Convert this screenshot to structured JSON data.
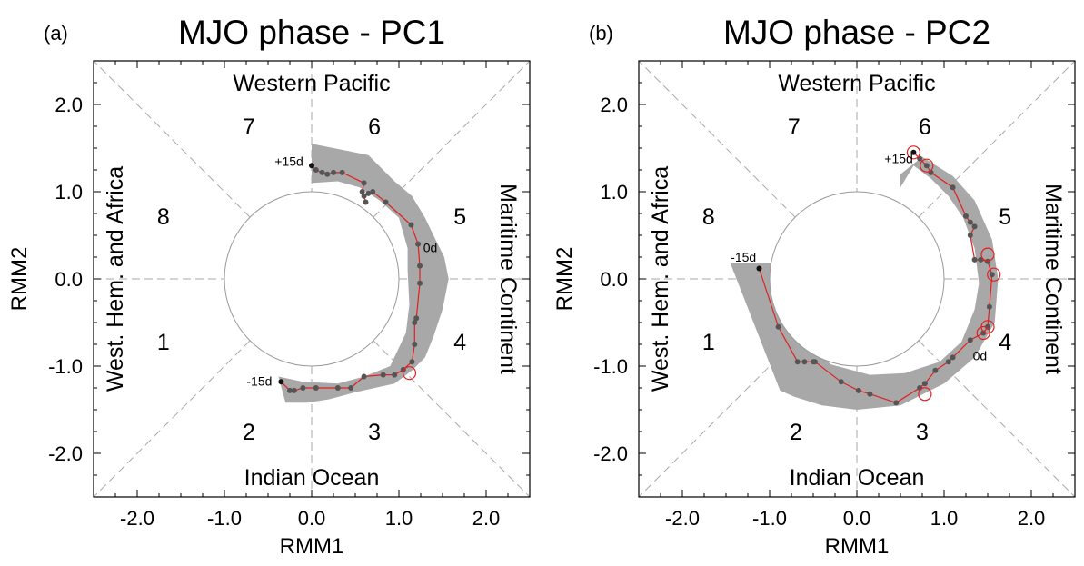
{
  "chart_data": [
    {
      "type": "scatter",
      "panel_label": "(a)",
      "title": "MJO phase - PC1",
      "xlabel": "RMM1",
      "ylabel": "RMM2",
      "xlim": [
        -2.5,
        2.5
      ],
      "ylim": [
        -2.5,
        2.5
      ],
      "xticks": [
        "-2.0",
        "-1.0",
        "0.0",
        "1.0",
        "2.0"
      ],
      "yticks": [
        "-2.0",
        "-1.0",
        "0.0",
        "1.0",
        "2.0"
      ],
      "region_labels": {
        "top": "Western Pacific",
        "bottom": "Indian Ocean",
        "left": "West. Hem. and Africa",
        "right": "Maritime Continent"
      },
      "phase_labels": [
        {
          "text": "1",
          "x": -1.7,
          "y": -0.72
        },
        {
          "text": "2",
          "x": -0.72,
          "y": -1.75
        },
        {
          "text": "3",
          "x": 0.72,
          "y": -1.75
        },
        {
          "text": "4",
          "x": 1.7,
          "y": -0.72
        },
        {
          "text": "5",
          "x": 1.7,
          "y": 0.72
        },
        {
          "text": "6",
          "x": 0.72,
          "y": 1.75
        },
        {
          "text": "7",
          "x": -0.72,
          "y": 1.75
        },
        {
          "text": "8",
          "x": -1.7,
          "y": 0.72
        }
      ],
      "lag_labels": [
        {
          "text": "-15d",
          "x": -0.6,
          "y": -1.17
        },
        {
          "text": "0d",
          "x": 1.36,
          "y": 0.36
        },
        {
          "text": "+15d",
          "x": -0.26,
          "y": 1.35
        }
      ],
      "band": [
        [
          0.0,
          1.55
        ],
        [
          0.35,
          1.48
        ],
        [
          0.65,
          1.42
        ],
        [
          0.95,
          1.12
        ],
        [
          1.15,
          0.95
        ],
        [
          1.3,
          0.7
        ],
        [
          1.42,
          0.45
        ],
        [
          1.52,
          0.25
        ],
        [
          1.57,
          0.0
        ],
        [
          1.5,
          -0.35
        ],
        [
          1.4,
          -0.65
        ],
        [
          1.3,
          -0.9
        ],
        [
          1.15,
          -1.05
        ],
        [
          0.95,
          -1.2
        ],
        [
          0.5,
          -1.3
        ],
        [
          0.2,
          -1.38
        ],
        [
          -0.05,
          -1.42
        ],
        [
          -0.3,
          -1.42
        ],
        [
          -0.38,
          -1.12
        ],
        [
          -0.1,
          -1.18
        ],
        [
          0.3,
          -1.2
        ],
        [
          0.6,
          -1.12
        ],
        [
          0.9,
          -1.0
        ],
        [
          1.08,
          -0.62
        ],
        [
          1.12,
          -0.3
        ],
        [
          1.1,
          0.1
        ],
        [
          1.1,
          0.35
        ],
        [
          1.0,
          0.7
        ],
        [
          0.78,
          0.9
        ],
        [
          0.55,
          1.05
        ],
        [
          0.3,
          1.12
        ],
        [
          0.0,
          1.1
        ]
      ],
      "points": [
        [
          -0.35,
          -1.18
        ],
        [
          -0.25,
          -1.28
        ],
        [
          -0.2,
          -1.28
        ],
        [
          -0.1,
          -1.25
        ],
        [
          0.05,
          -1.25
        ],
        [
          0.3,
          -1.25
        ],
        [
          0.45,
          -1.25
        ],
        [
          0.6,
          -1.12
        ],
        [
          0.82,
          -1.1
        ],
        [
          0.95,
          -1.1
        ],
        [
          1.05,
          -1.04
        ],
        [
          1.15,
          -0.95
        ],
        [
          1.18,
          -0.75
        ],
        [
          1.18,
          -0.5
        ],
        [
          1.2,
          -0.45
        ],
        [
          1.24,
          -0.05
        ],
        [
          1.24,
          0.15
        ],
        [
          1.22,
          0.4
        ],
        [
          1.14,
          0.62
        ],
        [
          0.85,
          0.88
        ],
        [
          0.7,
          1.0
        ],
        [
          0.65,
          0.98
        ],
        [
          0.6,
          0.95
        ],
        [
          0.62,
          0.88
        ],
        [
          0.58,
          1.0
        ],
        [
          0.6,
          1.1
        ],
        [
          0.35,
          1.22
        ],
        [
          0.25,
          1.22
        ],
        [
          0.18,
          1.2
        ],
        [
          0.12,
          1.22
        ],
        [
          0.05,
          1.25
        ],
        [
          0.0,
          1.3
        ]
      ],
      "highlight": [
        [
          1.12,
          -1.08
        ]
      ]
    },
    {
      "type": "scatter",
      "panel_label": "(b)",
      "title": "MJO phase - PC2",
      "xlabel": "RMM1",
      "ylabel": "RMM2",
      "xlim": [
        -2.5,
        2.5
      ],
      "ylim": [
        -2.5,
        2.5
      ],
      "xticks": [
        "-2.0",
        "-1.0",
        "0.0",
        "1.0",
        "2.0"
      ],
      "yticks": [
        "-2.0",
        "-1.0",
        "0.0",
        "1.0",
        "2.0"
      ],
      "region_labels": {
        "top": "Western Pacific",
        "bottom": "Indian Ocean",
        "left": "West. Hem. and Africa",
        "right": "Maritime Continent"
      },
      "phase_labels": [
        {
          "text": "1",
          "x": -1.7,
          "y": -0.72
        },
        {
          "text": "2",
          "x": -0.7,
          "y": -1.75
        },
        {
          "text": "3",
          "x": 0.75,
          "y": -1.75
        },
        {
          "text": "4",
          "x": 1.7,
          "y": -0.72
        },
        {
          "text": "5",
          "x": 1.7,
          "y": 0.72
        },
        {
          "text": "6",
          "x": 0.78,
          "y": 1.75
        },
        {
          "text": "7",
          "x": -0.72,
          "y": 1.75
        },
        {
          "text": "8",
          "x": -1.7,
          "y": 0.72
        }
      ],
      "lag_labels": [
        {
          "text": "-15d",
          "x": -1.3,
          "y": 0.25
        },
        {
          "text": "0d",
          "x": 1.41,
          "y": -0.88
        },
        {
          "text": "+15d",
          "x": 0.48,
          "y": 1.38
        }
      ],
      "band": [
        [
          -1.45,
          0.18
        ],
        [
          -0.95,
          0.18
        ],
        [
          -0.75,
          -0.35
        ],
        [
          -0.55,
          -0.72
        ],
        [
          -0.3,
          -0.98
        ],
        [
          0.15,
          -1.1
        ],
        [
          0.55,
          -1.08
        ],
        [
          0.95,
          -0.95
        ],
        [
          1.2,
          -0.72
        ],
        [
          1.35,
          -0.35
        ],
        [
          1.4,
          -0.05
        ],
        [
          1.35,
          0.35
        ],
        [
          1.22,
          0.7
        ],
        [
          1.05,
          0.95
        ],
        [
          0.85,
          1.15
        ],
        [
          0.65,
          1.3
        ],
        [
          0.5,
          1.05
        ],
        [
          0.5,
          1.2
        ],
        [
          0.75,
          1.4
        ],
        [
          1.1,
          1.18
        ],
        [
          1.35,
          0.9
        ],
        [
          1.55,
          0.45
        ],
        [
          1.62,
          0.0
        ],
        [
          1.58,
          -0.5
        ],
        [
          1.35,
          -0.9
        ],
        [
          1.0,
          -1.2
        ],
        [
          0.5,
          -1.45
        ],
        [
          0.0,
          -1.5
        ],
        [
          -0.4,
          -1.45
        ],
        [
          -0.72,
          -1.35
        ],
        [
          -0.88,
          -1.28
        ]
      ],
      "points": [
        [
          -1.12,
          0.12
        ],
        [
          -0.9,
          -0.55
        ],
        [
          -0.68,
          -0.95
        ],
        [
          -0.6,
          -0.95
        ],
        [
          -0.5,
          -0.95
        ],
        [
          -0.48,
          -0.95
        ],
        [
          -0.18,
          -1.18
        ],
        [
          0.02,
          -1.28
        ],
        [
          0.15,
          -1.32
        ],
        [
          0.45,
          -1.42
        ],
        [
          0.72,
          -1.25
        ],
        [
          0.78,
          -1.2
        ],
        [
          0.9,
          -1.05
        ],
        [
          1.05,
          -0.95
        ],
        [
          1.1,
          -0.9
        ],
        [
          1.3,
          -0.7
        ],
        [
          1.45,
          -0.62
        ],
        [
          1.5,
          -0.55
        ],
        [
          1.52,
          -0.32
        ],
        [
          1.55,
          0.05
        ],
        [
          1.5,
          0.2
        ],
        [
          1.42,
          0.22
        ],
        [
          1.35,
          0.22
        ],
        [
          1.3,
          0.5
        ],
        [
          1.35,
          0.6
        ],
        [
          1.3,
          0.65
        ],
        [
          1.25,
          0.72
        ],
        [
          1.1,
          1.05
        ],
        [
          0.85,
          1.22
        ],
        [
          0.8,
          1.3
        ],
        [
          0.72,
          1.38
        ],
        [
          0.65,
          1.45
        ]
      ],
      "highlight": [
        [
          0.65,
          1.45
        ],
        [
          0.8,
          1.3
        ],
        [
          1.5,
          0.28
        ],
        [
          1.57,
          0.05
        ],
        [
          1.5,
          -0.55
        ],
        [
          1.45,
          -0.62
        ],
        [
          0.78,
          -1.32
        ]
      ]
    }
  ]
}
